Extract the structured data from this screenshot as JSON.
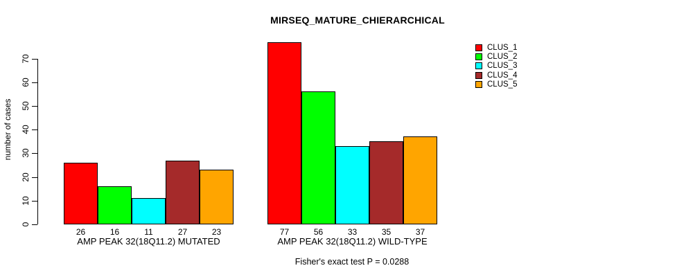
{
  "title": "MIRSEQ_MATURE_CHIERARCHICAL",
  "chart_data": {
    "type": "bar",
    "title": "MIRSEQ_MATURE_CHIERARCHICAL",
    "ylabel": "number of cases",
    "xlabel": "",
    "ylim": [
      0,
      70
    ],
    "yticks": [
      0,
      10,
      20,
      30,
      40,
      50,
      60,
      70
    ],
    "grid": false,
    "bar_border_color": "#000000",
    "series_colors": [
      "#FF0000",
      "#00FF00",
      "#00FFFF",
      "#A52A2A",
      "#FFA500"
    ],
    "legend": {
      "position": "top-right",
      "entries": [
        {
          "label": "CLUS_1",
          "color": "#FF0000"
        },
        {
          "label": "CLUS_2",
          "color": "#00FF00"
        },
        {
          "label": "CLUS_3",
          "color": "#00FFFF"
        },
        {
          "label": "CLUS_4",
          "color": "#A52A2A"
        },
        {
          "label": "CLUS_5",
          "color": "#FFA500"
        }
      ]
    },
    "groups": [
      {
        "label": "AMP PEAK 32(18Q11.2) MUTATED",
        "series": [
          "CLUS_1",
          "CLUS_2",
          "CLUS_3",
          "CLUS_4",
          "CLUS_5"
        ],
        "values": [
          26,
          16,
          11,
          27,
          23
        ]
      },
      {
        "label": "AMP PEAK 32(18Q11.2) WILD-TYPE",
        "series": [
          "CLUS_1",
          "CLUS_2",
          "CLUS_3",
          "CLUS_4",
          "CLUS_5"
        ],
        "values": [
          77,
          56,
          33,
          35,
          37
        ]
      }
    ],
    "annotation": "Fisher's exact test P = 0.0288"
  }
}
